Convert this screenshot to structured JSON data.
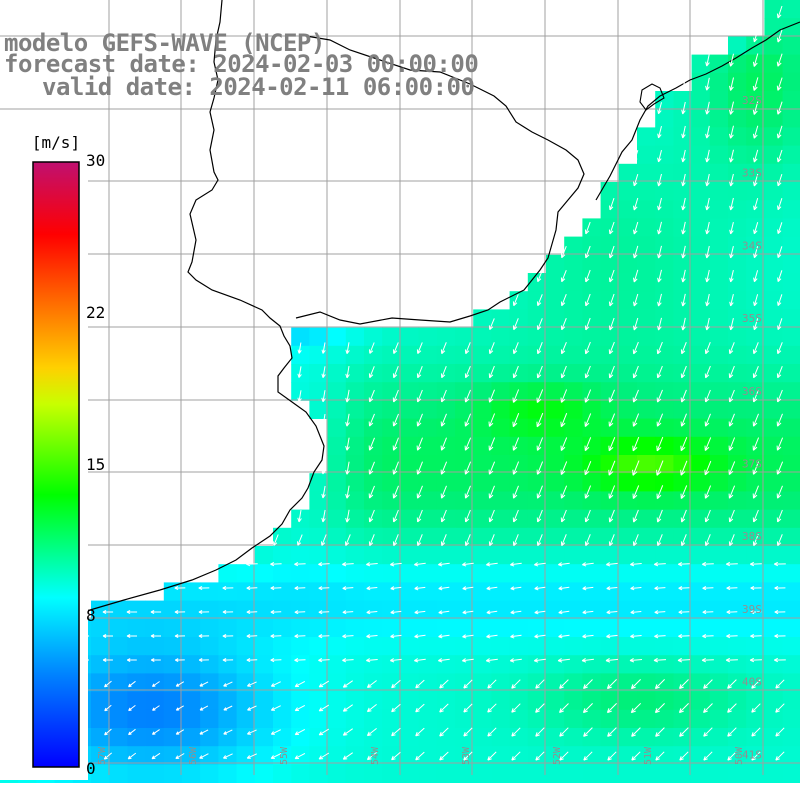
{
  "title": {
    "line1": "modelo GEFS-WAVE (NCEP)",
    "line2": "forecast date: 2024-02-03 00:00:00",
    "line3": "valid date: 2024-02-11 06:00:00"
  },
  "colorbar": {
    "unit_label": "[m/s]",
    "ticks": [
      "30",
      "22",
      "15",
      "8",
      "0"
    ],
    "min": 0,
    "max": 30,
    "colors": [
      "#0000ff",
      "#0087ff",
      "#00ffff",
      "#00ff00",
      "#ffff00",
      "#ff8000",
      "#ff0000",
      "#c01070"
    ]
  },
  "latitude_labels": [
    "32S",
    "33S",
    "34S",
    "35S",
    "36S",
    "37S",
    "38S",
    "39S",
    "40S",
    "41S"
  ],
  "longitude_labels": [
    "57W",
    "56W",
    "55W",
    "54W",
    "53W",
    "52W",
    "51W",
    "50W"
  ],
  "field": {
    "variable": "wind speed and direction",
    "units": "m/s",
    "description": "gridded 10 m wind, arrows point toward SW/S over most of the domain"
  }
}
